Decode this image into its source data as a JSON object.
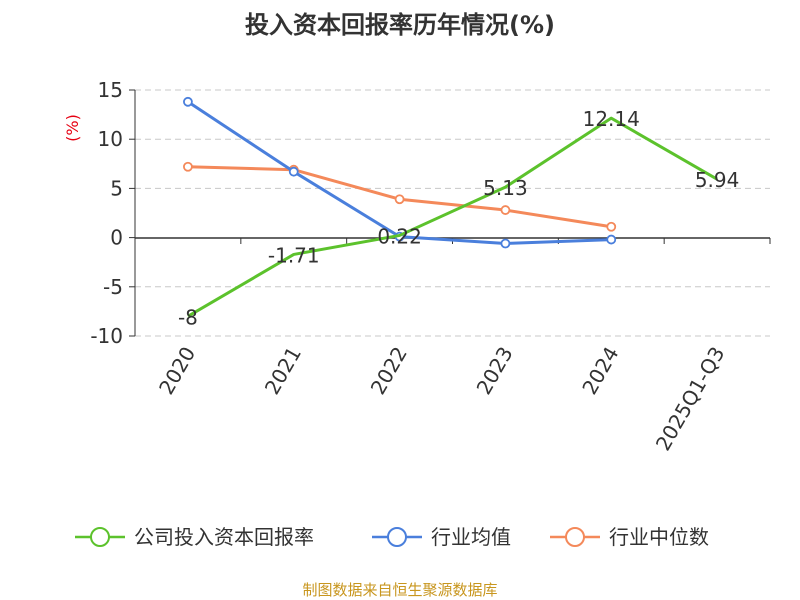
{
  "title": "投入资本回报率历年情况(%)",
  "unit_label": "(%)",
  "source": "制图数据来自恒生聚源数据库",
  "chart_data": {
    "type": "line",
    "title": "投入资本回报率历年情况(%)",
    "ylabel": "(%)",
    "categories": [
      "2020",
      "2021",
      "2022",
      "2023",
      "2024",
      "2025Q1-Q3"
    ],
    "ylim": [
      -10,
      15
    ],
    "yticks": [
      "15",
      "10",
      "5",
      "0",
      "-5",
      "-10"
    ],
    "grid": true,
    "legend_position": "bottom",
    "series": [
      {
        "name": "公司投入资本回报率",
        "color": "#5cc22c",
        "values": [
          -8,
          -1.71,
          0.22,
          5.13,
          12.14,
          5.94
        ],
        "labels": [
          "-8",
          "-1.71",
          "0.22",
          "5.13",
          "12.14",
          "5.94"
        ]
      },
      {
        "name": "行业均值",
        "color": "#4a7fdc",
        "values": [
          13.8,
          6.7,
          0.1,
          -0.6,
          -0.2,
          null
        ]
      },
      {
        "name": "行业中位数",
        "color": "#f4895a",
        "values": [
          7.2,
          6.9,
          3.9,
          2.8,
          1.1,
          null
        ]
      }
    ]
  }
}
